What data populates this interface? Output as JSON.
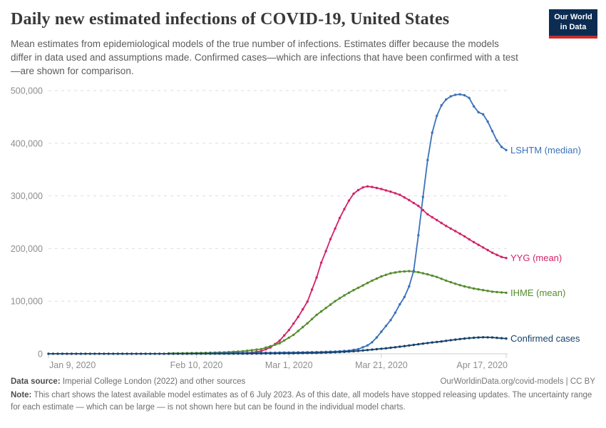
{
  "header": {
    "title": "Daily new estimated infections of COVID-19, United States",
    "subtitle": "Mean estimates from epidemiological models of the true number of infections. Estimates differ because the models differ in data used and assumptions made. Confirmed cases—which are infections that have been confirmed with a test—are shown for comparison.",
    "logo": {
      "line1": "Our World",
      "line2": "in Data",
      "bg_color": "#0C2C52",
      "accent_color": "#C52E2A"
    }
  },
  "chart_data": {
    "type": "line",
    "title": "Daily new estimated infections of COVID-19, United States",
    "grid": "horizontal dashed gridlines",
    "legend_position": "labels at right end of each line",
    "x_axis": {
      "unit": "date (days since Jan 9, 2020)",
      "min_day": 0,
      "max_day": 99,
      "ticks": [
        {
          "day": 0,
          "label": "Jan 9, 2020"
        },
        {
          "day": 32,
          "label": "Feb 10, 2020"
        },
        {
          "day": 52,
          "label": "Mar 1, 2020"
        },
        {
          "day": 72,
          "label": "Mar 21, 2020"
        },
        {
          "day": 99,
          "label": "Apr 17, 2020"
        }
      ]
    },
    "y_axis": {
      "min": 0,
      "max": 500000,
      "ticks": [
        {
          "value": 0,
          "label": "0"
        },
        {
          "value": 100000,
          "label": "100,000"
        },
        {
          "value": 200000,
          "label": "200,000"
        },
        {
          "value": 300000,
          "label": "300,000"
        },
        {
          "value": 400000,
          "label": "400,000"
        },
        {
          "value": 500000,
          "label": "500,000"
        }
      ]
    },
    "series": [
      {
        "id": "lshtm",
        "label": "LSHTM (median)",
        "color": "#3A72B9",
        "draw_order": 3,
        "points": [
          [
            35,
            1200
          ],
          [
            40,
            1500
          ],
          [
            45,
            1800
          ],
          [
            50,
            2300
          ],
          [
            55,
            2800
          ],
          [
            58,
            3300
          ],
          [
            61,
            4000
          ],
          [
            63,
            4800
          ],
          [
            65,
            6000
          ],
          [
            67,
            9000
          ],
          [
            69,
            16000
          ],
          [
            70,
            22000
          ],
          [
            71,
            31000
          ],
          [
            72,
            42000
          ],
          [
            73,
            53000
          ],
          [
            74,
            64000
          ],
          [
            75,
            78000
          ],
          [
            76,
            94000
          ],
          [
            77,
            108000
          ],
          [
            78,
            128000
          ],
          [
            79,
            158000
          ],
          [
            80,
            225000
          ],
          [
            81,
            298000
          ],
          [
            82,
            368000
          ],
          [
            83,
            420000
          ],
          [
            84,
            452000
          ],
          [
            85,
            472000
          ],
          [
            86,
            483000
          ],
          [
            87,
            489000
          ],
          [
            88,
            492000
          ],
          [
            89,
            493000
          ],
          [
            90,
            491000
          ],
          [
            91,
            486000
          ],
          [
            92,
            470000
          ],
          [
            93,
            459000
          ],
          [
            94,
            455000
          ],
          [
            95,
            441000
          ],
          [
            96,
            423000
          ],
          [
            97,
            405000
          ],
          [
            98,
            393000
          ],
          [
            99,
            387000
          ]
        ]
      },
      {
        "id": "yyg",
        "label": "YYG (mean)",
        "color": "#D12368",
        "draw_order": 1,
        "points": [
          [
            39,
            800
          ],
          [
            42,
            1600
          ],
          [
            44,
            2600
          ],
          [
            46,
            5000
          ],
          [
            48,
            12000
          ],
          [
            50,
            25000
          ],
          [
            52,
            45000
          ],
          [
            54,
            70000
          ],
          [
            56,
            99000
          ],
          [
            58,
            145000
          ],
          [
            59,
            173000
          ],
          [
            60,
            195000
          ],
          [
            61,
            218000
          ],
          [
            62,
            238000
          ],
          [
            63,
            258000
          ],
          [
            64,
            275000
          ],
          [
            65,
            291000
          ],
          [
            66,
            304000
          ],
          [
            67,
            311000
          ],
          [
            68,
            316000
          ],
          [
            69,
            318000
          ],
          [
            70,
            317000
          ],
          [
            71,
            315000
          ],
          [
            72,
            313000
          ],
          [
            74,
            308000
          ],
          [
            76,
            302000
          ],
          [
            78,
            292000
          ],
          [
            80,
            281000
          ],
          [
            82,
            265000
          ],
          [
            84,
            254000
          ],
          [
            86,
            243000
          ],
          [
            88,
            233000
          ],
          [
            90,
            223000
          ],
          [
            92,
            212000
          ],
          [
            94,
            202000
          ],
          [
            96,
            192000
          ],
          [
            98,
            184000
          ],
          [
            99,
            182000
          ]
        ]
      },
      {
        "id": "ihme",
        "label": "IHME (mean)",
        "color": "#558C2D",
        "draw_order": 2,
        "points": [
          [
            26,
            800
          ],
          [
            30,
            1200
          ],
          [
            34,
            1800
          ],
          [
            38,
            2800
          ],
          [
            42,
            4800
          ],
          [
            46,
            9000
          ],
          [
            50,
            20000
          ],
          [
            53,
            36000
          ],
          [
            56,
            58000
          ],
          [
            58,
            74000
          ],
          [
            60,
            87000
          ],
          [
            62,
            100000
          ],
          [
            64,
            111000
          ],
          [
            66,
            121000
          ],
          [
            68,
            130000
          ],
          [
            70,
            139000
          ],
          [
            72,
            147000
          ],
          [
            74,
            153000
          ],
          [
            76,
            156000
          ],
          [
            78,
            157000
          ],
          [
            80,
            155000
          ],
          [
            82,
            151000
          ],
          [
            84,
            146000
          ],
          [
            86,
            139000
          ],
          [
            88,
            133000
          ],
          [
            90,
            128000
          ],
          [
            92,
            124000
          ],
          [
            94,
            121000
          ],
          [
            96,
            118000
          ],
          [
            99,
            116000
          ]
        ]
      },
      {
        "id": "confirmed",
        "label": "Confirmed cases",
        "color": "#17426B",
        "draw_order": 4,
        "points": [
          [
            0,
            100
          ],
          [
            10,
            100
          ],
          [
            20,
            150
          ],
          [
            30,
            200
          ],
          [
            40,
            350
          ],
          [
            45,
            500
          ],
          [
            50,
            800
          ],
          [
            54,
            1200
          ],
          [
            58,
            1800
          ],
          [
            61,
            2600
          ],
          [
            64,
            3800
          ],
          [
            67,
            5500
          ],
          [
            70,
            8000
          ],
          [
            73,
            10500
          ],
          [
            76,
            13500
          ],
          [
            79,
            17000
          ],
          [
            82,
            20500
          ],
          [
            85,
            23500
          ],
          [
            88,
            27000
          ],
          [
            90,
            29000
          ],
          [
            92,
            30500
          ],
          [
            94,
            31500
          ],
          [
            96,
            31000
          ],
          [
            99,
            29000
          ]
        ]
      }
    ]
  },
  "footer": {
    "data_source_label": "Data source:",
    "data_source_text": " Imperial College London (2022) and other sources",
    "rights": "OurWorldinData.org/covid-models | CC BY",
    "note_label": "Note:",
    "note_text": " This chart shows the latest available model estimates as of 6 July 2023. As of this date, all models have stopped releasing updates. The uncertainty range for each estimate — which can be large — is not shown here but can be found in the individual model charts."
  },
  "style": {
    "gridline_color": "#dedede",
    "axis_line_color": "#cfcfcf",
    "axis_text_color": "#8d8d8d"
  }
}
